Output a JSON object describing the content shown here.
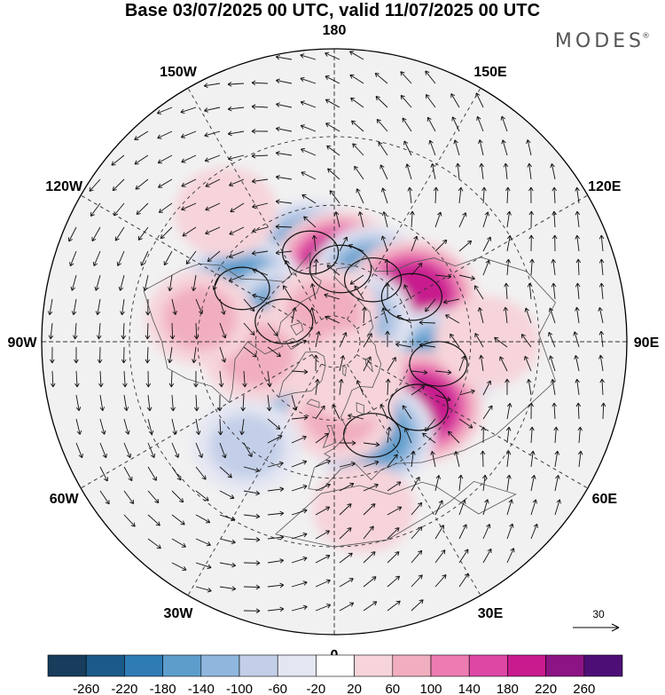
{
  "title": "Base 03/07/2025 00 UTC, valid 11/07/2025 00 UTC",
  "brand": {
    "name": "MODES",
    "mark": "®"
  },
  "map": {
    "projection": "north-polar-stereographic",
    "longitude_labels": [
      {
        "lon": 180,
        "text": "180"
      },
      {
        "lon": 150,
        "text": "150E"
      },
      {
        "lon": 120,
        "text": "120E"
      },
      {
        "lon": 90,
        "text": "90E"
      },
      {
        "lon": 60,
        "text": "60E"
      },
      {
        "lon": 30,
        "text": "30E"
      },
      {
        "lon": 0,
        "text": "0"
      },
      {
        "lon": -30,
        "text": "30W"
      },
      {
        "lon": -60,
        "text": "60W"
      },
      {
        "lon": -90,
        "text": "90W"
      },
      {
        "lon": -120,
        "text": "120W"
      },
      {
        "lon": -150,
        "text": "150W"
      }
    ],
    "latitude_circles": [
      20,
      40,
      60,
      80
    ],
    "anomalies": [
      {
        "lon": -165,
        "lat": 55,
        "value": -150
      },
      {
        "lon": 175,
        "lat": 62,
        "value": 210
      },
      {
        "lon": 148,
        "lat": 62,
        "value": -160
      },
      {
        "lon": 120,
        "lat": 56,
        "value": 200
      },
      {
        "lon": -120,
        "lat": 50,
        "value": -140
      },
      {
        "lon": -112,
        "lat": 69,
        "value": -170
      },
      {
        "lon": 78,
        "lat": 50,
        "value": -170
      },
      {
        "lon": 52,
        "lat": 50,
        "value": 190
      },
      {
        "lon": 22,
        "lat": 52,
        "value": -160
      },
      {
        "lon": -30,
        "lat": 65,
        "value": -100
      },
      {
        "lon": 135,
        "lat": 78,
        "value": -100
      },
      {
        "lon": -160,
        "lat": 78,
        "value": 70
      },
      {
        "lon": 5,
        "lat": 62,
        "value": 60
      },
      {
        "lon": -80,
        "lat": 60,
        "value": 60
      },
      {
        "lon": -100,
        "lat": 40,
        "value": 60
      },
      {
        "lon": 90,
        "lat": 35,
        "value": 40
      },
      {
        "lon": -40,
        "lat": 40,
        "value": -60
      },
      {
        "lon": 10,
        "lat": 30,
        "value": 30
      },
      {
        "lon": -140,
        "lat": 30,
        "value": 30
      },
      {
        "lon": 30,
        "lat": 75,
        "value": 40
      }
    ]
  },
  "colorbar": {
    "ticks": [
      "-260",
      "-220",
      "-180",
      "-140",
      "-100",
      "-60",
      "-20",
      "20",
      "60",
      "100",
      "140",
      "180",
      "220",
      "260"
    ],
    "colors": [
      "#173c5c",
      "#1b5a8a",
      "#2f7cb5",
      "#5d9dcc",
      "#8fb7dd",
      "#c3cfe8",
      "#e4e6f2",
      "#ffffff",
      "#f6d4da",
      "#f1aebf",
      "#ec7cb2",
      "#de48a5",
      "#c81b8e",
      "#8c1484",
      "#4d0f75"
    ]
  },
  "reference_arrow": {
    "label": "30"
  },
  "colors": {
    "coast": "#555555",
    "grid": "#333333",
    "zero_band": "#ececec"
  }
}
